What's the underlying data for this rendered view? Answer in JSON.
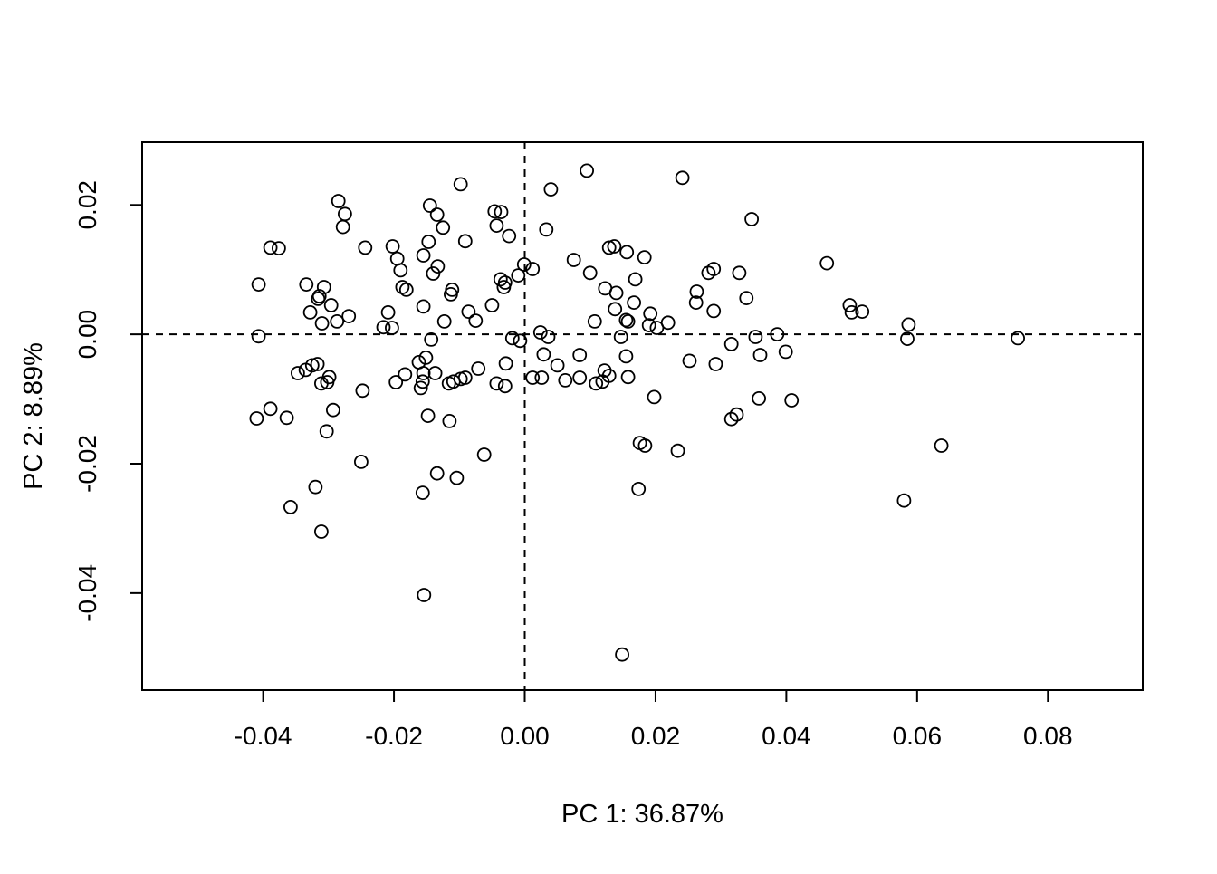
{
  "figure": {
    "background": "#ffffff",
    "foreground": "#000000"
  },
  "chart_data": {
    "type": "scatter",
    "title": "",
    "xlabel": "PC 1: 36.87%",
    "ylabel": "PC 2: 8.89%",
    "xlim": [
      -0.0585,
      0.0945
    ],
    "ylim": [
      -0.055,
      0.0297
    ],
    "x_ticks": [
      -0.04,
      -0.02,
      0.0,
      0.02,
      0.04,
      0.06,
      0.08
    ],
    "y_ticks": [
      -0.04,
      -0.02,
      0.0,
      0.02
    ],
    "tick_decimals": 2,
    "grid": false,
    "legend": "none",
    "reference_lines": [
      {
        "orientation": "vertical",
        "at": 0,
        "style": "dashed"
      },
      {
        "orientation": "horizontal",
        "at": 0,
        "style": "dashed"
      }
    ],
    "marker": {
      "shape": "open-circle",
      "stroke": "#000000",
      "fill": "none"
    },
    "points": [
      [
        -0.0389,
        0.0134
      ],
      [
        -0.0376,
        0.0133
      ],
      [
        -0.0407,
        0.0077
      ],
      [
        -0.0334,
        0.0077
      ],
      [
        -0.0098,
        0.0232
      ],
      [
        -0.0285,
        0.0206
      ],
      [
        -0.0275,
        0.0186
      ],
      [
        -0.0278,
        0.0166
      ],
      [
        -0.0145,
        0.0199
      ],
      [
        -0.0134,
        0.0185
      ],
      [
        -0.0125,
        0.0165
      ],
      [
        -0.0244,
        0.0134
      ],
      [
        -0.0202,
        0.0136
      ],
      [
        -0.0195,
        0.0117
      ],
      [
        -0.019,
        0.0099
      ],
      [
        -0.0147,
        0.0143
      ],
      [
        -0.0155,
        0.0122
      ],
      [
        -0.0091,
        0.0144
      ],
      [
        -0.0133,
        0.0105
      ],
      [
        -0.014,
        0.0094
      ],
      [
        -0.0187,
        0.0073
      ],
      [
        -0.0181,
        0.0069
      ],
      [
        -0.0307,
        0.0073
      ],
      [
        -0.0316,
        0.0055
      ],
      [
        -0.0296,
        0.0045
      ],
      [
        -0.0314,
        0.0059
      ],
      [
        -0.0269,
        0.0028
      ],
      [
        -0.0287,
        0.002
      ],
      [
        -0.031,
        0.0017
      ],
      [
        -0.0209,
        0.0034
      ],
      [
        -0.0111,
        0.0069
      ],
      [
        -0.0155,
        0.0043
      ],
      [
        -0.0123,
        0.002
      ],
      [
        -0.0113,
        0.0062
      ],
      [
        -0.0086,
        0.0035
      ],
      [
        -0.0075,
        0.0021
      ],
      [
        -0.005,
        0.0045
      ],
      [
        -0.0328,
        0.0034
      ],
      [
        0.0095,
        0.0253
      ],
      [
        0.004,
        0.0224
      ],
      [
        -0.0046,
        0.019
      ],
      [
        -0.0036,
        0.0189
      ],
      [
        -0.0043,
        0.0168
      ],
      [
        -0.0024,
        0.0152
      ],
      [
        0.0033,
        0.0162
      ],
      [
        -0.0001,
        0.0108
      ],
      [
        0.0012,
        0.0101
      ],
      [
        -0.001,
        0.0091
      ],
      [
        -0.0037,
        0.0085
      ],
      [
        -0.003,
        0.008
      ],
      [
        -0.0032,
        0.0073
      ],
      [
        0.0075,
        0.0115
      ],
      [
        0.01,
        0.0095
      ],
      [
        0.0129,
        0.0134
      ],
      [
        0.0137,
        0.0136
      ],
      [
        0.0156,
        0.0127
      ],
      [
        0.0183,
        0.0119
      ],
      [
        0.0123,
        0.0071
      ],
      [
        0.014,
        0.0064
      ],
      [
        0.0169,
        0.0085
      ],
      [
        0.0167,
        0.0049
      ],
      [
        0.0138,
        0.0039
      ],
      [
        0.0155,
        0.0022
      ],
      [
        0.0107,
        0.002
      ],
      [
        0.0158,
        0.002
      ],
      [
        0.0241,
        0.0242
      ],
      [
        0.0347,
        0.0178
      ],
      [
        0.0281,
        0.0095
      ],
      [
        0.0289,
        0.0101
      ],
      [
        0.0328,
        0.0095
      ],
      [
        0.0263,
        0.0066
      ],
      [
        0.0262,
        0.0049
      ],
      [
        0.0339,
        0.0056
      ],
      [
        0.0289,
        0.0036
      ],
      [
        0.0192,
        0.0032
      ],
      [
        0.019,
        0.0014
      ],
      [
        0.0202,
        0.001
      ],
      [
        0.0219,
        0.0018
      ],
      [
        0.0462,
        0.011
      ],
      [
        0.0497,
        0.0045
      ],
      [
        0.05,
        0.0034
      ],
      [
        0.0516,
        0.0035
      ],
      [
        0.0587,
        0.0015
      ],
      [
        0.0585,
        -0.0007
      ],
      [
        0.0754,
        -0.0006
      ],
      [
        -0.0407,
        -0.0003
      ],
      [
        -0.0347,
        -0.006
      ],
      [
        -0.0335,
        -0.0055
      ],
      [
        -0.041,
        -0.013
      ],
      [
        -0.0389,
        -0.0115
      ],
      [
        -0.0364,
        -0.0129
      ],
      [
        -0.0358,
        -0.0267
      ],
      [
        -0.0143,
        -0.0008
      ],
      [
        -0.0317,
        -0.0046
      ],
      [
        -0.0325,
        -0.0048
      ],
      [
        -0.0299,
        -0.0066
      ],
      [
        -0.0311,
        -0.0076
      ],
      [
        -0.0302,
        -0.0074
      ],
      [
        -0.0248,
        -0.0087
      ],
      [
        -0.0183,
        -0.0062
      ],
      [
        -0.0197,
        -0.0074
      ],
      [
        -0.0162,
        -0.0043
      ],
      [
        -0.0151,
        -0.0036
      ],
      [
        -0.0155,
        -0.006
      ],
      [
        -0.0156,
        -0.0073
      ],
      [
        -0.0159,
        -0.0083
      ],
      [
        -0.0137,
        -0.006
      ],
      [
        -0.0116,
        -0.0076
      ],
      [
        -0.0109,
        -0.0073
      ],
      [
        -0.0098,
        -0.0069
      ],
      [
        -0.0091,
        -0.0067
      ],
      [
        -0.0293,
        -0.0117
      ],
      [
        -0.0303,
        -0.015
      ],
      [
        -0.025,
        -0.0197
      ],
      [
        -0.0148,
        -0.0126
      ],
      [
        -0.0115,
        -0.0134
      ],
      [
        -0.0134,
        -0.0215
      ],
      [
        -0.0104,
        -0.0222
      ],
      [
        -0.032,
        -0.0236
      ],
      [
        -0.0156,
        -0.0245
      ],
      [
        -0.0216,
        0.0011
      ],
      [
        -0.0203,
        0.001
      ],
      [
        -0.0019,
        -0.0006
      ],
      [
        -0.0007,
        -0.001
      ],
      [
        0.0024,
        0.0003
      ],
      [
        0.0036,
        -0.0004
      ],
      [
        0.0029,
        -0.0031
      ],
      [
        -0.0029,
        -0.0045
      ],
      [
        -0.0071,
        -0.0053
      ],
      [
        -0.0043,
        -0.0076
      ],
      [
        -0.003,
        -0.008
      ],
      [
        0.0012,
        -0.0067
      ],
      [
        0.0026,
        -0.0067
      ],
      [
        0.005,
        -0.0048
      ],
      [
        0.0062,
        -0.0071
      ],
      [
        0.0084,
        -0.0032
      ],
      [
        0.0084,
        -0.0067
      ],
      [
        0.0109,
        -0.0076
      ],
      [
        0.0119,
        -0.0073
      ],
      [
        0.0122,
        -0.0056
      ],
      [
        0.0129,
        -0.0064
      ],
      [
        0.0147,
        -0.0004
      ],
      [
        0.0155,
        -0.0034
      ],
      [
        0.0158,
        -0.0066
      ],
      [
        -0.0062,
        -0.0186
      ],
      [
        0.0176,
        -0.0168
      ],
      [
        0.0184,
        -0.0172
      ],
      [
        0.0174,
        -0.0239
      ],
      [
        0.0316,
        -0.0015
      ],
      [
        0.0353,
        -0.0004
      ],
      [
        0.0386,
        0.0
      ],
      [
        0.036,
        -0.0032
      ],
      [
        0.0399,
        -0.0027
      ],
      [
        0.0252,
        -0.0041
      ],
      [
        0.0292,
        -0.0046
      ],
      [
        0.0198,
        -0.0097
      ],
      [
        0.0358,
        -0.0099
      ],
      [
        0.0408,
        -0.0102
      ],
      [
        0.0316,
        -0.0131
      ],
      [
        0.0324,
        -0.0124
      ],
      [
        0.0234,
        -0.018
      ],
      [
        0.0637,
        -0.0172
      ],
      [
        0.058,
        -0.0257
      ],
      [
        -0.0311,
        -0.0305
      ],
      [
        -0.0154,
        -0.0403
      ],
      [
        0.0149,
        -0.0495
      ]
    ]
  }
}
